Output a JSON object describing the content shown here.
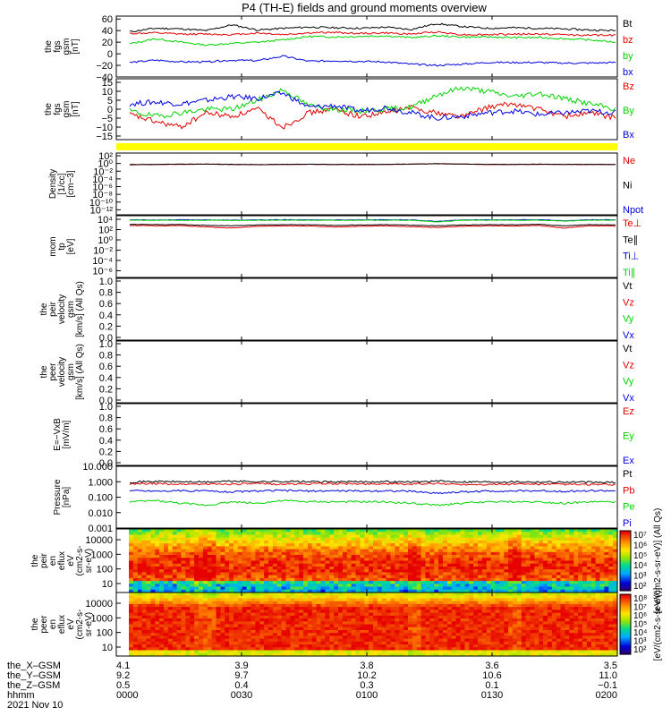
{
  "title": "P4 (TH-E) fields and ground moments overview",
  "colors": {
    "black": "#000000",
    "red": "#e00000",
    "green": "#00d400",
    "blue": "#0000e0",
    "yellow": "#ffff00"
  },
  "chart_data": [
    {
      "type": "line",
      "ylabel": [
        "the",
        "fgs",
        "gsm",
        "[nT]"
      ],
      "ylim": [
        -40,
        65
      ],
      "yticks": [
        "60",
        "40",
        "20",
        "0",
        "−20",
        "−40"
      ],
      "series": [
        {
          "name": "Bt",
          "color": "#000000",
          "values": [
            38,
            44,
            43,
            40,
            50,
            41,
            44,
            46,
            45,
            44,
            46,
            42,
            52,
            47,
            44,
            45,
            44,
            43,
            41,
            40
          ]
        },
        {
          "name": "bz",
          "color": "#e00000",
          "values": [
            35,
            36,
            34,
            34,
            33,
            36,
            33,
            36,
            37,
            35,
            36,
            34,
            38,
            33,
            33,
            34,
            34,
            33,
            32,
            32
          ]
        },
        {
          "name": "by",
          "color": "#00d400",
          "values": [
            17,
            26,
            20,
            15,
            18,
            20,
            24,
            30,
            29,
            30,
            31,
            28,
            31,
            29,
            29,
            28,
            28,
            26,
            24,
            20
          ]
        },
        {
          "name": "bx",
          "color": "#0000e0",
          "values": [
            -15,
            -11,
            -14,
            -14,
            -11,
            -12,
            -4,
            -13,
            -12,
            -13,
            -14,
            -18,
            -20,
            -18,
            -15,
            -15,
            -15,
            -16,
            -16,
            -15
          ]
        }
      ]
    },
    {
      "type": "line",
      "ylabel": [
        "the",
        "fgs",
        "gsm",
        "[nT]"
      ],
      "ylim": [
        -17,
        17
      ],
      "yticks": [
        "15",
        "10",
        "5",
        "0",
        "−5",
        "−10",
        "−15"
      ],
      "series": [
        {
          "name": "Bz",
          "color": "#e00000",
          "values": [
            -3,
            -7,
            -10,
            -2,
            -4,
            0,
            -10,
            -2,
            0,
            -4,
            -2,
            1,
            -2,
            -4,
            1,
            3,
            0,
            -4,
            -2,
            -5
          ]
        },
        {
          "name": "By",
          "color": "#00d400",
          "values": [
            -1,
            -4,
            -2,
            0,
            0,
            5,
            11,
            2,
            0,
            -1,
            0,
            1,
            8,
            12,
            10,
            7,
            9,
            6,
            3,
            0
          ]
        },
        {
          "name": "Bx",
          "color": "#0000e0",
          "values": [
            3,
            4,
            3,
            5,
            7,
            6,
            9,
            1,
            2,
            -1,
            1,
            -2,
            -5,
            -4,
            -2,
            -1,
            -3,
            -2,
            -1,
            -2
          ]
        }
      ]
    },
    {
      "type": "bar",
      "note_series": "yellow status bar",
      "color": "#ffff00",
      "values": []
    },
    {
      "type": "line",
      "ylog": true,
      "ylabel": [
        "Density",
        "[1/cc]",
        "[cm−3]"
      ],
      "yticks": [
        "10²",
        "10⁰",
        "10⁻²",
        "10⁻⁴",
        "10⁻⁶",
        "10⁻⁸",
        "10⁻¹⁰",
        "10⁻¹²"
      ],
      "ylim_exp": [
        -12.5,
        2
      ],
      "series": [
        {
          "name": "Ne",
          "color": "#e00000",
          "values": [
            0.18,
            0.2,
            0.22,
            0.25,
            0.2,
            0.18,
            0.2,
            0.22,
            0.2,
            0.2,
            0.21,
            0.25,
            0.3,
            0.26,
            0.2,
            0.2,
            0.22,
            0.2,
            0.2,
            0.2
          ]
        },
        {
          "name": "Ni",
          "color": "#000000",
          "values": [
            0.2,
            0.22,
            0.25,
            0.25,
            0.22,
            0.2,
            0.22,
            0.24,
            0.22,
            0.22,
            0.22,
            0.26,
            0.32,
            0.27,
            0.22,
            0.22,
            0.24,
            0.22,
            0.22,
            0.22
          ]
        },
        {
          "name": "Npot",
          "color": "#0000e0",
          "values": []
        }
      ]
    },
    {
      "type": "line",
      "ylog": true,
      "ylabel": [
        "mom",
        "tp",
        "[eV]"
      ],
      "yticks": [
        "10⁴",
        "10²",
        "10⁰",
        "10⁻²",
        "10⁻⁴",
        "10⁻⁶"
      ],
      "ylim_exp": [
        -6.5,
        4.5
      ],
      "series": [
        {
          "name": "Te⊥",
          "color": "#e00000",
          "values": [
            600,
            500,
            550,
            300,
            200,
            400,
            500,
            450,
            300,
            400,
            500,
            350,
            250,
            400,
            500,
            450,
            600,
            200,
            500,
            450
          ]
        },
        {
          "name": "Te∥",
          "color": "#000000",
          "values": [
            900,
            800,
            850,
            600,
            500,
            700,
            800,
            750,
            600,
            700,
            800,
            650,
            500,
            700,
            800,
            750,
            900,
            500,
            800,
            750
          ]
        },
        {
          "name": "Ti⊥",
          "color": "#0000e0",
          "values": [
            6000,
            5500,
            6000,
            5800,
            5000,
            5500,
            6000,
            5800,
            5500,
            5800,
            6000,
            5700,
            3000,
            5500,
            6000,
            5800,
            6000,
            4000,
            6000,
            5800
          ]
        },
        {
          "name": "Ti∥",
          "color": "#00d400",
          "values": [
            5000,
            4800,
            5000,
            4900,
            4500,
            4800,
            5000,
            4900,
            4800,
            4900,
            5000,
            4800,
            2500,
            4800,
            5000,
            4900,
            5000,
            3500,
            5000,
            4900
          ]
        }
      ]
    },
    {
      "type": "line",
      "ylabel": [
        "the",
        "peir",
        "velocity",
        "gsm",
        "[km/s] (All Qs)"
      ],
      "ylim": [
        0,
        1
      ],
      "yticks": [
        "1.0",
        "0.8",
        "0.6",
        "0.4",
        "0.2",
        "0.0"
      ],
      "series": [
        {
          "name": "Vt",
          "color": "#000000",
          "values": []
        },
        {
          "name": "Vz",
          "color": "#e00000",
          "values": []
        },
        {
          "name": "Vy",
          "color": "#00d400",
          "values": []
        },
        {
          "name": "Vx",
          "color": "#0000e0",
          "values": []
        }
      ]
    },
    {
      "type": "line",
      "ylabel": [
        "the",
        "peer",
        "velocity",
        "gsm",
        "[km/s] (All Qs)"
      ],
      "ylim": [
        0,
        1
      ],
      "yticks": [
        "1.0",
        "0.8",
        "0.6",
        "0.4",
        "0.2",
        "0.0"
      ],
      "series": [
        {
          "name": "Vt",
          "color": "#000000",
          "values": []
        },
        {
          "name": "Vz",
          "color": "#e00000",
          "values": []
        },
        {
          "name": "Vy",
          "color": "#00d400",
          "values": []
        },
        {
          "name": "Vx",
          "color": "#0000e0",
          "values": []
        }
      ]
    },
    {
      "type": "line",
      "ylabel": [
        "E=−VxB",
        "[mV/m]"
      ],
      "ylim": [
        0,
        1
      ],
      "yticks": [
        "1.0",
        "0.8",
        "0.6",
        "0.4",
        "0.2",
        "0.0"
      ],
      "series": [
        {
          "name": "Ez",
          "color": "#e00000",
          "values": []
        },
        {
          "name": "Ey",
          "color": "#00d400",
          "values": []
        },
        {
          "name": "Ex",
          "color": "#0000e0",
          "values": []
        }
      ]
    },
    {
      "type": "line",
      "ylog": true,
      "ylabel": [
        "Pressure",
        "[nPa]"
      ],
      "yticks": [
        "10.000",
        "1.000",
        "0.100",
        "0.010",
        "0.001"
      ],
      "ylim_exp": [
        -3,
        1
      ],
      "series": [
        {
          "name": "Pt",
          "color": "#000000",
          "values": [
            0.95,
            1.05,
            1.0,
            0.95,
            1.1,
            1.0,
            1.05,
            1.0,
            0.98,
            1.0,
            1.02,
            0.95,
            1.1,
            1.0,
            0.98,
            1.0,
            0.98,
            0.95,
            0.92,
            0.9
          ]
        },
        {
          "name": "Pb",
          "color": "#e00000",
          "values": [
            0.7,
            0.75,
            0.7,
            0.7,
            0.72,
            0.73,
            0.7,
            0.74,
            0.75,
            0.72,
            0.74,
            0.7,
            0.75,
            0.68,
            0.68,
            0.7,
            0.7,
            0.68,
            0.65,
            0.65
          ]
        },
        {
          "name": "Pe",
          "color": "#00d400",
          "values": [
            0.05,
            0.06,
            0.04,
            0.03,
            0.05,
            0.04,
            0.06,
            0.05,
            0.05,
            0.05,
            0.05,
            0.04,
            0.03,
            0.04,
            0.05,
            0.05,
            0.05,
            0.04,
            0.05,
            0.05
          ]
        },
        {
          "name": "Pi",
          "color": "#0000e0",
          "values": [
            0.27,
            0.25,
            0.26,
            0.25,
            0.22,
            0.25,
            0.27,
            0.25,
            0.26,
            0.25,
            0.26,
            0.24,
            0.18,
            0.22,
            0.25,
            0.25,
            0.26,
            0.24,
            0.26,
            0.26
          ]
        }
      ]
    },
    {
      "type": "heatmap",
      "ylog": true,
      "ylabel": [
        "the",
        "peir",
        "en",
        "eflux",
        "eV",
        "(cm2-s-",
        "sr-eV)"
      ],
      "yticks": [
        "10000",
        "1000",
        "100",
        "10"
      ],
      "ylim_exp": [
        0.9,
        4.2
      ],
      "colorbar": {
        "label": "[eV/(cm2-s-sr-eV)] (All Qs)",
        "ticks": [
          "10⁷",
          "10⁶",
          "10⁵",
          "10⁴",
          "10³",
          "10²"
        ],
        "range_exp": [
          1.7,
          7
        ]
      }
    },
    {
      "type": "heatmap",
      "ylog": true,
      "ylabel": [
        "the",
        "peer",
        "en",
        "eflux",
        "eV",
        "(cm2-s-",
        "sr-eV)"
      ],
      "yticks": [
        "10000",
        "1000",
        "100",
        "10"
      ],
      "ylim_exp": [
        0.9,
        4.2
      ],
      "colorbar": {
        "label": "[eV/(cm2-s-sr-eV)]",
        "ticks": [
          "10⁸",
          "10⁷",
          "10⁶",
          "10⁵",
          "10⁴",
          "10³",
          "10²"
        ],
        "range_exp": [
          1.7,
          8.3
        ]
      }
    }
  ],
  "x_axis": {
    "row_labels": [
      "the_X–GSM",
      "the_Y–GSM",
      "the_Z–GSM",
      "hhmm",
      "2021 Nov 10"
    ],
    "ticks": [
      {
        "values": [
          "4.1",
          "9.2",
          "0.5",
          "0000"
        ]
      },
      {
        "values": [
          "3.9",
          "9.7",
          "0.4",
          "0030"
        ]
      },
      {
        "values": [
          "3.8",
          "10.2",
          "0.3",
          "0100"
        ]
      },
      {
        "values": [
          "3.6",
          "10.6",
          "0.1",
          "0130"
        ]
      },
      {
        "values": [
          "3.5",
          "11.0",
          "−0.1",
          "0200"
        ]
      }
    ]
  }
}
